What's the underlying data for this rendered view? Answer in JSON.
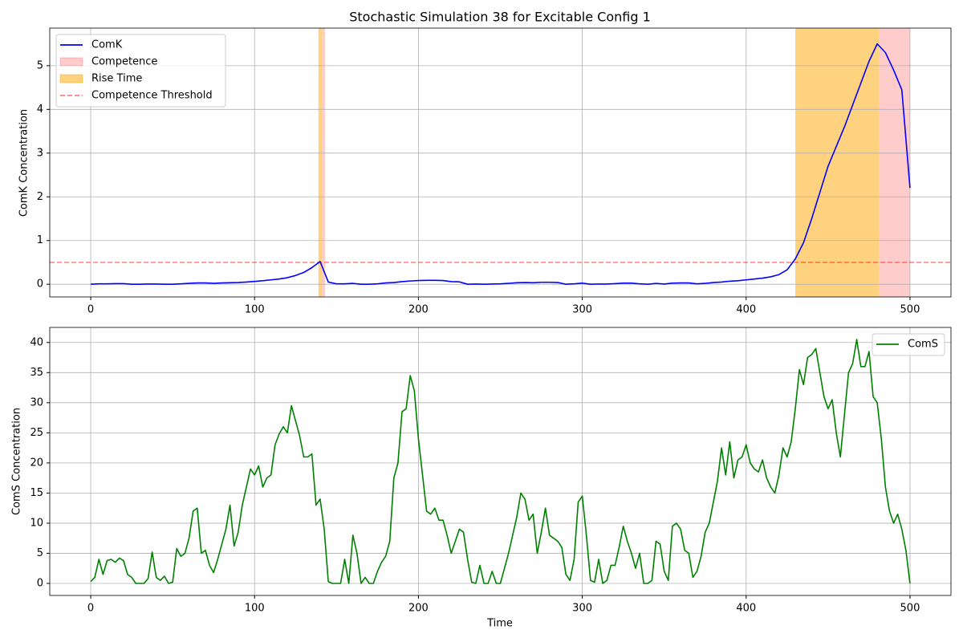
{
  "chart_data": [
    {
      "type": "line",
      "title": "Stochastic Simulation 38 for Excitable Config 1",
      "ylabel": "ComK Concentration",
      "x": [
        0,
        5,
        10,
        15,
        20,
        25,
        30,
        35,
        40,
        45,
        50,
        55,
        60,
        65,
        70,
        75,
        80,
        85,
        90,
        95,
        100,
        105,
        110,
        115,
        120,
        125,
        130,
        135,
        140,
        145,
        150,
        155,
        160,
        165,
        170,
        175,
        180,
        185,
        190,
        195,
        200,
        205,
        210,
        215,
        220,
        225,
        230,
        235,
        240,
        245,
        250,
        255,
        260,
        265,
        270,
        275,
        280,
        285,
        290,
        295,
        300,
        305,
        310,
        315,
        320,
        325,
        330,
        335,
        340,
        345,
        350,
        355,
        360,
        365,
        370,
        375,
        380,
        385,
        390,
        395,
        400,
        405,
        410,
        415,
        420,
        425,
        430,
        435,
        440,
        445,
        450,
        455,
        460,
        465,
        470,
        475,
        480,
        485,
        490,
        495,
        500
      ],
      "series": [
        {
          "name": "ComK",
          "color": "#0000ff",
          "values": [
            0,
            0.01,
            0.01,
            0.015,
            0.015,
            0,
            0,
            0.005,
            0.005,
            0,
            0,
            0.01,
            0.02,
            0.03,
            0.03,
            0.02,
            0.03,
            0.035,
            0.04,
            0.05,
            0.065,
            0.08,
            0.1,
            0.12,
            0.15,
            0.2,
            0.27,
            0.38,
            0.52,
            0.05,
            0.01,
            0.01,
            0.02,
            0,
            0,
            0.01,
            0.03,
            0.04,
            0.06,
            0.075,
            0.085,
            0.09,
            0.09,
            0.085,
            0.06,
            0.055,
            0,
            0.005,
            0,
            0.005,
            0.01,
            0.02,
            0.035,
            0.04,
            0.035,
            0.045,
            0.045,
            0.04,
            0,
            0.01,
            0.025,
            0,
            0.005,
            0.005,
            0.015,
            0.025,
            0.025,
            0.01,
            0,
            0.02,
            0.005,
            0.025,
            0.03,
            0.03,
            0.01,
            0.02,
            0.04,
            0.05,
            0.07,
            0.08,
            0.1,
            0.12,
            0.14,
            0.17,
            0.22,
            0.33,
            0.58,
            0.95,
            1.5,
            2.1,
            2.7,
            3.15,
            3.6,
            4.1,
            4.6,
            5.1,
            5.5,
            5.3,
            4.9,
            4.45,
            2.2
          ]
        }
      ],
      "spans": [
        {
          "name": "Competence",
          "color": "red",
          "alpha": 0.2,
          "ranges": [
            [
              141,
              143
            ],
            [
              481,
              500
            ]
          ]
        },
        {
          "name": "Rise Time",
          "color": "orange",
          "alpha": 0.5,
          "ranges": [
            [
              139,
              141
            ],
            [
              430,
              481
            ]
          ]
        }
      ],
      "threshold": {
        "name": "Competence Threshold",
        "value": 0.5,
        "color": "red",
        "alpha": 0.5
      },
      "xlim": [
        -25,
        525
      ],
      "xticks": [
        0,
        100,
        200,
        300,
        400,
        500
      ],
      "ylim": [
        -0.29,
        5.86
      ],
      "yticks": [
        0,
        1,
        2,
        3,
        4,
        5
      ],
      "grid": true,
      "legend": "upper left"
    },
    {
      "type": "line",
      "xlabel": "Time",
      "ylabel": "ComS Concentration",
      "x": [
        0,
        2.5,
        5,
        7.5,
        10,
        12.5,
        15,
        17.5,
        20,
        22.5,
        25,
        27.5,
        30,
        32.5,
        35,
        37.5,
        40,
        42.5,
        45,
        47.5,
        50,
        52.5,
        55,
        57.5,
        60,
        62.5,
        65,
        67.5,
        70,
        72.5,
        75,
        77.5,
        80,
        82.5,
        85,
        87.5,
        90,
        92.5,
        95,
        97.5,
        100,
        102.5,
        105,
        107.5,
        110,
        112.5,
        115,
        117.5,
        120,
        122.5,
        125,
        127.5,
        130,
        132.5,
        135,
        137.5,
        140,
        142.5,
        145,
        147.5,
        150,
        152.5,
        155,
        157.5,
        160,
        162.5,
        165,
        167.5,
        170,
        172.5,
        175,
        177.5,
        180,
        182.5,
        185,
        187.5,
        190,
        192.5,
        195,
        197.5,
        200,
        202.5,
        205,
        207.5,
        210,
        212.5,
        215,
        217.5,
        220,
        222.5,
        225,
        227.5,
        230,
        232.5,
        235,
        237.5,
        240,
        242.5,
        245,
        247.5,
        250,
        252.5,
        255,
        257.5,
        260,
        262.5,
        265,
        267.5,
        270,
        272.5,
        275,
        277.5,
        280,
        282.5,
        285,
        287.5,
        290,
        292.5,
        295,
        297.5,
        300,
        302.5,
        305,
        307.5,
        310,
        312.5,
        315,
        317.5,
        320,
        322.5,
        325,
        327.5,
        330,
        332.5,
        335,
        337.5,
        340,
        342.5,
        345,
        347.5,
        350,
        352.5,
        355,
        357.5,
        360,
        362.5,
        365,
        367.5,
        370,
        372.5,
        375,
        377.5,
        380,
        382.5,
        385,
        387.5,
        390,
        392.5,
        395,
        397.5,
        400,
        402.5,
        405,
        407.5,
        410,
        412.5,
        415,
        417.5,
        420,
        422.5,
        425,
        427.5,
        430,
        432.5,
        435,
        437.5,
        440,
        442.5,
        445,
        447.5,
        450,
        452.5,
        455,
        457.5,
        460,
        462.5,
        465,
        467.5,
        470,
        472.5,
        475,
        477.5,
        480,
        482.5,
        485,
        487.5,
        490,
        492.5,
        495,
        497.5,
        500
      ],
      "series": [
        {
          "name": "ComS",
          "color": "#008000",
          "values": [
            0.3,
            1,
            4,
            1.5,
            3.8,
            4,
            3.5,
            4.2,
            3.8,
            1.5,
            1,
            0,
            0,
            0,
            0.8,
            5.2,
            1,
            0.5,
            1.2,
            0,
            0.2,
            5.8,
            4.5,
            5,
            7.5,
            12,
            12.5,
            5,
            5.5,
            3,
            1.8,
            4,
            6.5,
            9,
            13,
            6.2,
            8.5,
            13,
            16,
            19,
            18,
            19.5,
            16,
            17.5,
            18,
            23,
            24.8,
            26,
            25,
            29.5,
            27,
            24.5,
            21,
            21,
            21.5,
            13,
            14,
            9,
            0.3,
            0,
            0,
            0,
            4,
            0,
            8,
            5,
            0,
            1,
            0,
            0,
            2,
            3.5,
            4.5,
            7,
            17.5,
            20,
            28.5,
            29,
            34.5,
            32,
            24,
            18,
            12,
            11.5,
            12.5,
            10.5,
            10.5,
            8,
            5,
            7,
            9,
            8.5,
            4,
            0.2,
            0,
            3,
            0,
            0,
            2,
            0,
            0,
            2.5,
            5,
            8,
            11,
            15,
            14,
            10.5,
            11.5,
            5,
            8.5,
            12.5,
            8,
            7.5,
            7,
            6,
            1.5,
            0.5,
            4,
            13.5,
            14.5,
            8,
            0.5,
            0.2,
            4,
            0,
            0.5,
            3,
            3,
            6,
            9.5,
            7,
            5,
            2.5,
            5,
            0,
            0,
            0.5,
            7,
            6.5,
            2,
            0.5,
            9.5,
            10,
            9,
            5.5,
            5,
            1,
            2,
            4.5,
            8.5,
            10,
            13.5,
            17,
            22.5,
            18,
            23.5,
            17.5,
            20.5,
            21,
            23,
            20,
            19,
            18.5,
            20.5,
            17.5,
            16,
            15,
            18,
            22.5,
            21,
            23.5,
            29,
            35.5,
            33,
            37.5,
            38,
            39,
            35,
            31,
            29,
            30.5,
            25,
            21,
            28,
            35,
            36.5,
            40.5,
            36,
            36,
            38.5,
            31,
            30,
            24,
            16,
            12,
            10,
            11.5,
            9,
            5.5,
            0
          ]
        }
      ],
      "xlim": [
        -25,
        525
      ],
      "xticks": [
        0,
        100,
        200,
        300,
        400,
        500
      ],
      "ylim": [
        -2,
        42.5
      ],
      "yticks": [
        0,
        5,
        10,
        15,
        20,
        25,
        30,
        35,
        40
      ],
      "grid": true,
      "legend": "upper right"
    }
  ]
}
